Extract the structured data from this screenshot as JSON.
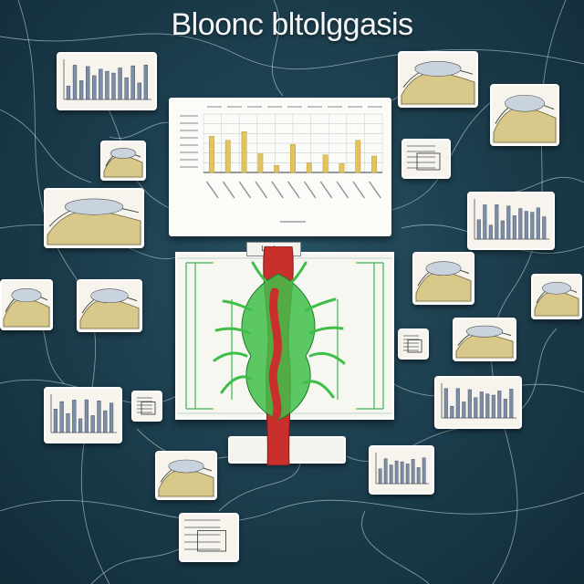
{
  "title": "Bloonc bltolggasis",
  "main_chart": {
    "type": "bar",
    "values": [
      0.62,
      0.55,
      0.7,
      0.32,
      0.12,
      0.48,
      0.16,
      0.3,
      0.15,
      0.55,
      0.28
    ],
    "highlight_color": "#e3c45c",
    "grid_color": "#c8ccd3"
  },
  "center_panel": {
    "label": "Lttoloss",
    "vessel_colors": {
      "red": "#c9302c",
      "green": "#3fbf4a"
    }
  },
  "thumbnails": [
    {
      "name": "thumb-bar-chart-top-left",
      "kind": "bars"
    },
    {
      "name": "thumb-illustration-top-right",
      "kind": "illustration"
    },
    {
      "name": "thumb-illustration-right",
      "kind": "illustration"
    },
    {
      "name": "thumb-diagram-left",
      "kind": "illustration"
    },
    {
      "name": "thumb-line-chart-right",
      "kind": "lines"
    },
    {
      "name": "thumb-illustration-left-1",
      "kind": "illustration"
    },
    {
      "name": "thumb-bar-chart-right",
      "kind": "bars"
    },
    {
      "name": "thumb-illustration-left-2",
      "kind": "illustration"
    },
    {
      "name": "thumb-illustration-right-2",
      "kind": "illustration"
    },
    {
      "name": "thumb-illustration-left-3",
      "kind": "illustration"
    },
    {
      "name": "thumb-small-card-right",
      "kind": "illustration"
    },
    {
      "name": "thumb-illustration-right-3",
      "kind": "illustration"
    },
    {
      "name": "thumb-bar-chart-left",
      "kind": "bars"
    },
    {
      "name": "thumb-small-card-left",
      "kind": "lines"
    },
    {
      "name": "thumb-bar-chart-bottom-right",
      "kind": "bars"
    },
    {
      "name": "thumb-illustration-bottom-left",
      "kind": "illustration"
    },
    {
      "name": "thumb-bar-chart-bottom-right-2",
      "kind": "bars"
    },
    {
      "name": "thumb-chart-bottom",
      "kind": "lines"
    },
    {
      "name": "thumb-small-card-mid-right",
      "kind": "lines"
    }
  ]
}
